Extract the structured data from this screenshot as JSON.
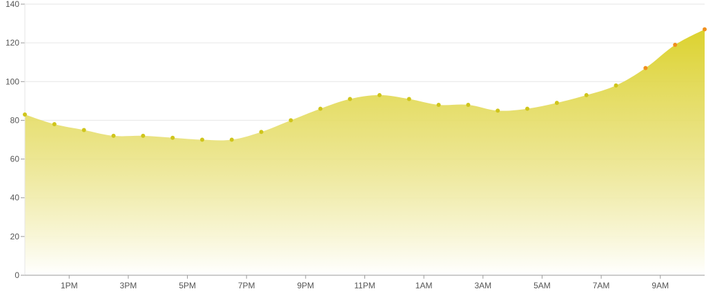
{
  "chart_data": {
    "type": "area",
    "title": "",
    "xlabel": "",
    "ylabel": "",
    "ylim": [
      0,
      140
    ],
    "yticks": [
      0,
      20,
      40,
      60,
      80,
      100,
      120,
      140
    ],
    "x_tick_labels": [
      "1PM",
      "3PM",
      "5PM",
      "7PM",
      "9PM",
      "11PM",
      "1AM",
      "3AM",
      "5AM",
      "7AM",
      "9AM"
    ],
    "grid": true,
    "legend": "none",
    "series": [
      {
        "values": [
          83,
          78,
          75,
          72,
          72,
          71,
          70,
          70,
          74,
          80,
          86,
          91,
          93,
          91,
          88,
          88,
          85,
          86,
          89,
          93,
          98,
          107,
          119,
          127
        ]
      }
    ],
    "colors": {
      "fill_top": "#dcd22e",
      "fill_bottom": "#ffffff",
      "point": "#cfc51c",
      "point_high": "#f0901e",
      "grid": "#e6e6e6",
      "axis": "#999999"
    }
  }
}
